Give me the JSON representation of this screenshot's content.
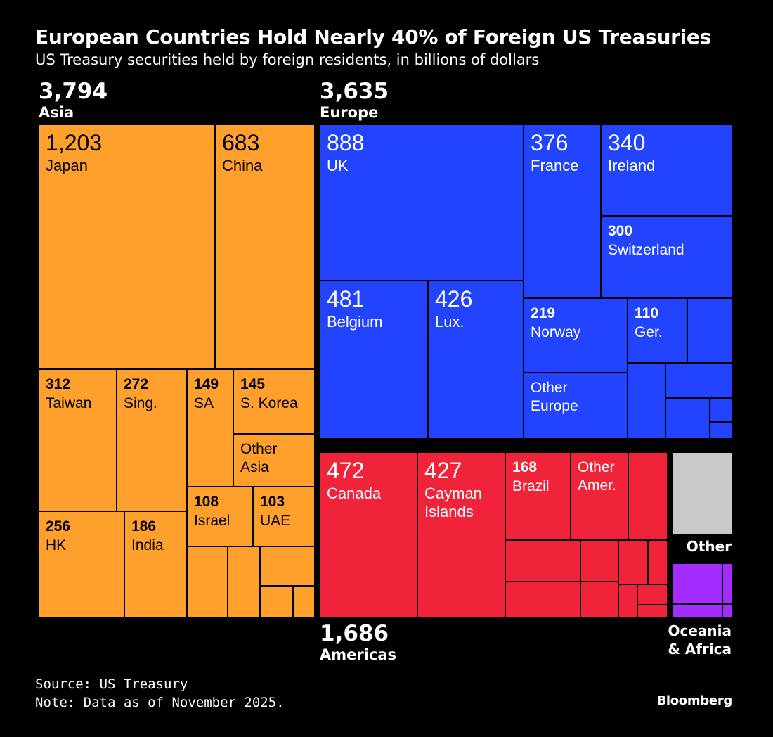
{
  "title": "European Countries Hold Nearly 40% of Foreign US Treasuries",
  "subtitle": "US Treasury securities held by foreign residents, in billions of dollars",
  "source": "Source: US Treasury",
  "note": "Note: Data as of November 2025.",
  "brand": "Bloomberg",
  "colors": {
    "asia": "#FFA02C",
    "europe": "#2244FF",
    "americas": "#F0233A",
    "other": "#C8C8C8",
    "oceania": "#A52CFF",
    "background": "#000000"
  },
  "chart_data": {
    "type": "treemap",
    "title": "European Countries Hold Nearly 40% of Foreign US Treasuries",
    "units": "billions of dollars",
    "groups": [
      {
        "name": "Asia",
        "total": "3,794",
        "total_value": 3794,
        "color": "#FFA02C",
        "items": [
          {
            "name": "Japan",
            "value": 1203,
            "label": "1,203"
          },
          {
            "name": "China",
            "value": 683,
            "label": "683"
          },
          {
            "name": "Taiwan",
            "value": 312,
            "label": "312"
          },
          {
            "name": "Sing.",
            "value": 272,
            "label": "272"
          },
          {
            "name": "SA",
            "value": 149,
            "label": "149"
          },
          {
            "name": "S. Korea",
            "value": 145,
            "label": "145"
          },
          {
            "name": "Other Asia",
            "value": 120,
            "label": ""
          },
          {
            "name": "HK",
            "value": 256,
            "label": "256"
          },
          {
            "name": "India",
            "value": 186,
            "label": "186"
          },
          {
            "name": "Israel",
            "value": 108,
            "label": "108"
          },
          {
            "name": "UAE",
            "value": 103,
            "label": "103"
          }
        ]
      },
      {
        "name": "Europe",
        "total": "3,635",
        "total_value": 3635,
        "color": "#2244FF",
        "items": [
          {
            "name": "UK",
            "value": 888,
            "label": "888"
          },
          {
            "name": "France",
            "value": 376,
            "label": "376"
          },
          {
            "name": "Ireland",
            "value": 340,
            "label": "340"
          },
          {
            "name": "Switzerland",
            "value": 300,
            "label": "300"
          },
          {
            "name": "Belgium",
            "value": 481,
            "label": "481"
          },
          {
            "name": "Lux.",
            "value": 426,
            "label": "426"
          },
          {
            "name": "Norway",
            "value": 219,
            "label": "219"
          },
          {
            "name": "Ger.",
            "value": 110,
            "label": "110"
          },
          {
            "name": "Other Europe",
            "value": 170,
            "label": ""
          }
        ]
      },
      {
        "name": "Americas",
        "total": "1,686",
        "total_value": 1686,
        "color": "#F0233A",
        "items": [
          {
            "name": "Canada",
            "value": 472,
            "label": "472"
          },
          {
            "name": "Cayman Islands",
            "value": 427,
            "label": "427"
          },
          {
            "name": "Brazil",
            "value": 168,
            "label": "168"
          },
          {
            "name": "Other Amer.",
            "value": 130,
            "label": ""
          }
        ]
      },
      {
        "name": "Other",
        "total": "",
        "color": "#C8C8C8",
        "items": []
      },
      {
        "name": "Oceania & Africa",
        "total": "",
        "color": "#A52CFF",
        "items": []
      }
    ]
  }
}
